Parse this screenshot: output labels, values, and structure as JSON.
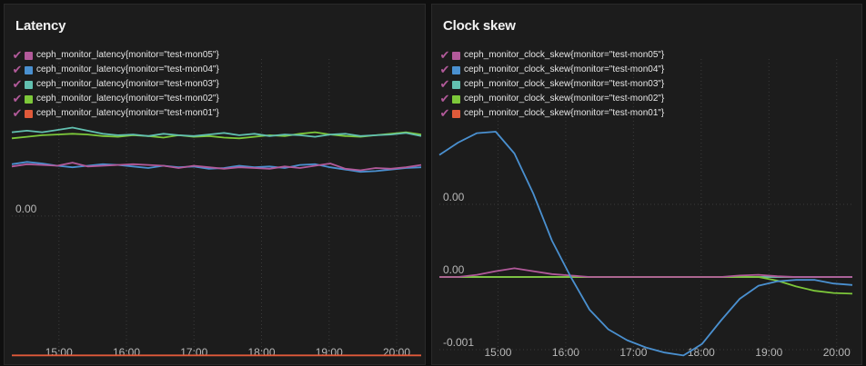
{
  "chart_data": [
    {
      "type": "line",
      "title": "Latency",
      "x_ticks": [
        "15:00",
        "16:00",
        "17:00",
        "18:00",
        "19:00",
        "20:00"
      ],
      "y_ticks": [
        "0.00"
      ],
      "grid": true,
      "legend_position": "top-left",
      "series": [
        {
          "name": "ceph_monitor_latency{monitor=\"test-mon05\"}",
          "color": "#b25a9a",
          "values": [
            0.0065,
            0.0068,
            0.0067,
            0.0066,
            0.007,
            0.0065,
            0.0066,
            0.0067,
            0.0068,
            0.0067,
            0.0066,
            0.0063,
            0.0066,
            0.0064,
            0.0062,
            0.0064,
            0.0063,
            0.0062,
            0.0065,
            0.0063,
            0.0066,
            0.0069,
            0.0062,
            0.006,
            0.0063,
            0.0062,
            0.0064,
            0.0067
          ]
        },
        {
          "name": "ceph_monitor_latency{monitor=\"test-mon04\"}",
          "color": "#4a90d0",
          "values": [
            0.0068,
            0.0071,
            0.0069,
            0.0066,
            0.0064,
            0.0066,
            0.0068,
            0.0067,
            0.0065,
            0.0063,
            0.0066,
            0.0064,
            0.0065,
            0.0062,
            0.0063,
            0.0066,
            0.0064,
            0.0065,
            0.0063,
            0.0067,
            0.0068,
            0.0064,
            0.0061,
            0.0058,
            0.0059,
            0.0061,
            0.0063,
            0.0064
          ]
        },
        {
          "name": "ceph_monitor_latency{monitor=\"test-mon03\"}",
          "color": "#62c0b0",
          "values": [
            0.011,
            0.0112,
            0.011,
            0.0113,
            0.0116,
            0.0112,
            0.0108,
            0.0106,
            0.0107,
            0.0105,
            0.0108,
            0.0106,
            0.0105,
            0.0107,
            0.0109,
            0.0106,
            0.0108,
            0.0105,
            0.0107,
            0.0106,
            0.0104,
            0.0107,
            0.0108,
            0.0105,
            0.0106,
            0.0107,
            0.0109,
            0.0105
          ]
        },
        {
          "name": "ceph_monitor_latency{monitor=\"test-mon02\"}",
          "color": "#7dc83a",
          "values": [
            0.0102,
            0.0104,
            0.0106,
            0.0107,
            0.0108,
            0.0107,
            0.0105,
            0.0104,
            0.0106,
            0.0105,
            0.0103,
            0.0106,
            0.0104,
            0.0105,
            0.0103,
            0.0102,
            0.0104,
            0.0106,
            0.0105,
            0.0108,
            0.011,
            0.0107,
            0.0105,
            0.0104,
            0.0106,
            0.0108,
            0.011,
            0.0107
          ]
        },
        {
          "name": "ceph_monitor_latency{monitor=\"test-mon01\"}",
          "color": "#e05a3a",
          "values": [
            -0.0183,
            -0.0183,
            -0.0183,
            -0.0183,
            -0.0183,
            -0.0183,
            -0.0183,
            -0.0183,
            -0.0183,
            -0.0183,
            -0.0183,
            -0.0183,
            -0.0183,
            -0.0183,
            -0.0183,
            -0.0183,
            -0.0183,
            -0.0183,
            -0.0183,
            -0.0183,
            -0.0183,
            -0.0183,
            -0.0183,
            -0.0183,
            -0.0183,
            -0.0183,
            -0.0183,
            -0.0183
          ]
        }
      ]
    },
    {
      "type": "line",
      "title": "Clock skew",
      "x_ticks": [
        "15:00",
        "16:00",
        "17:00",
        "18:00",
        "19:00",
        "20:00"
      ],
      "y_ticks": [
        "0.00",
        "0.00",
        "-0.001"
      ],
      "grid": true,
      "legend_position": "top-left",
      "series": [
        {
          "name": "ceph_monitor_clock_skew{monitor=\"test-mon05\"}",
          "color": "#b25a9a",
          "values": [
            0.0,
            0.0,
            3e-05,
            8e-05,
            0.00012,
            8e-05,
            4e-05,
            2e-05,
            0.0,
            0.0,
            0.0,
            0.0,
            0.0,
            0.0,
            0.0,
            0.0,
            2e-05,
            3e-05,
            1e-05,
            0.0,
            0.0,
            0.0,
            0.0
          ]
        },
        {
          "name": "ceph_monitor_clock_skew{monitor=\"test-mon04\"}",
          "color": "#4a90d0",
          "values": [
            0.00168,
            0.00185,
            0.00198,
            0.002,
            0.0017,
            0.00115,
            0.0005,
            0.0,
            -0.00045,
            -0.00072,
            -0.00087,
            -0.00097,
            -0.00104,
            -0.00108,
            -0.00092,
            -0.0006,
            -0.0003,
            -0.00012,
            -6e-05,
            -4e-05,
            -4e-05,
            -9e-05,
            -0.00011
          ]
        },
        {
          "name": "ceph_monitor_clock_skew{monitor=\"test-mon03\"}",
          "color": "#62c0b0",
          "values": [
            0.0,
            0.0,
            0.0,
            0.0,
            0.0,
            0.0,
            0.0,
            0.0,
            0.0,
            0.0,
            0.0,
            0.0,
            0.0,
            0.0,
            0.0,
            0.0,
            0.0,
            0.0,
            0.0,
            0.0,
            0.0,
            0.0,
            0.0
          ]
        },
        {
          "name": "ceph_monitor_clock_skew{monitor=\"test-mon02\"}",
          "color": "#7dc83a",
          "values": [
            0.0,
            0.0,
            0.0,
            0.0,
            0.0,
            0.0,
            0.0,
            0.0,
            0.0,
            0.0,
            0.0,
            0.0,
            0.0,
            0.0,
            0.0,
            0.0,
            0.0,
            0.0,
            -5e-05,
            -0.00013,
            -0.00019,
            -0.00022,
            -0.00023
          ]
        },
        {
          "name": "ceph_monitor_clock_skew{monitor=\"test-mon01\"}",
          "color": "#e05a3a",
          "values": [
            0.0,
            0.0,
            0.0,
            0.0,
            0.0,
            0.0,
            0.0,
            0.0,
            0.0,
            0.0,
            0.0,
            0.0,
            0.0,
            0.0,
            0.0,
            0.0,
            0.0,
            0.0,
            0.0,
            0.0,
            0.0,
            0.0,
            0.0
          ]
        }
      ]
    }
  ]
}
